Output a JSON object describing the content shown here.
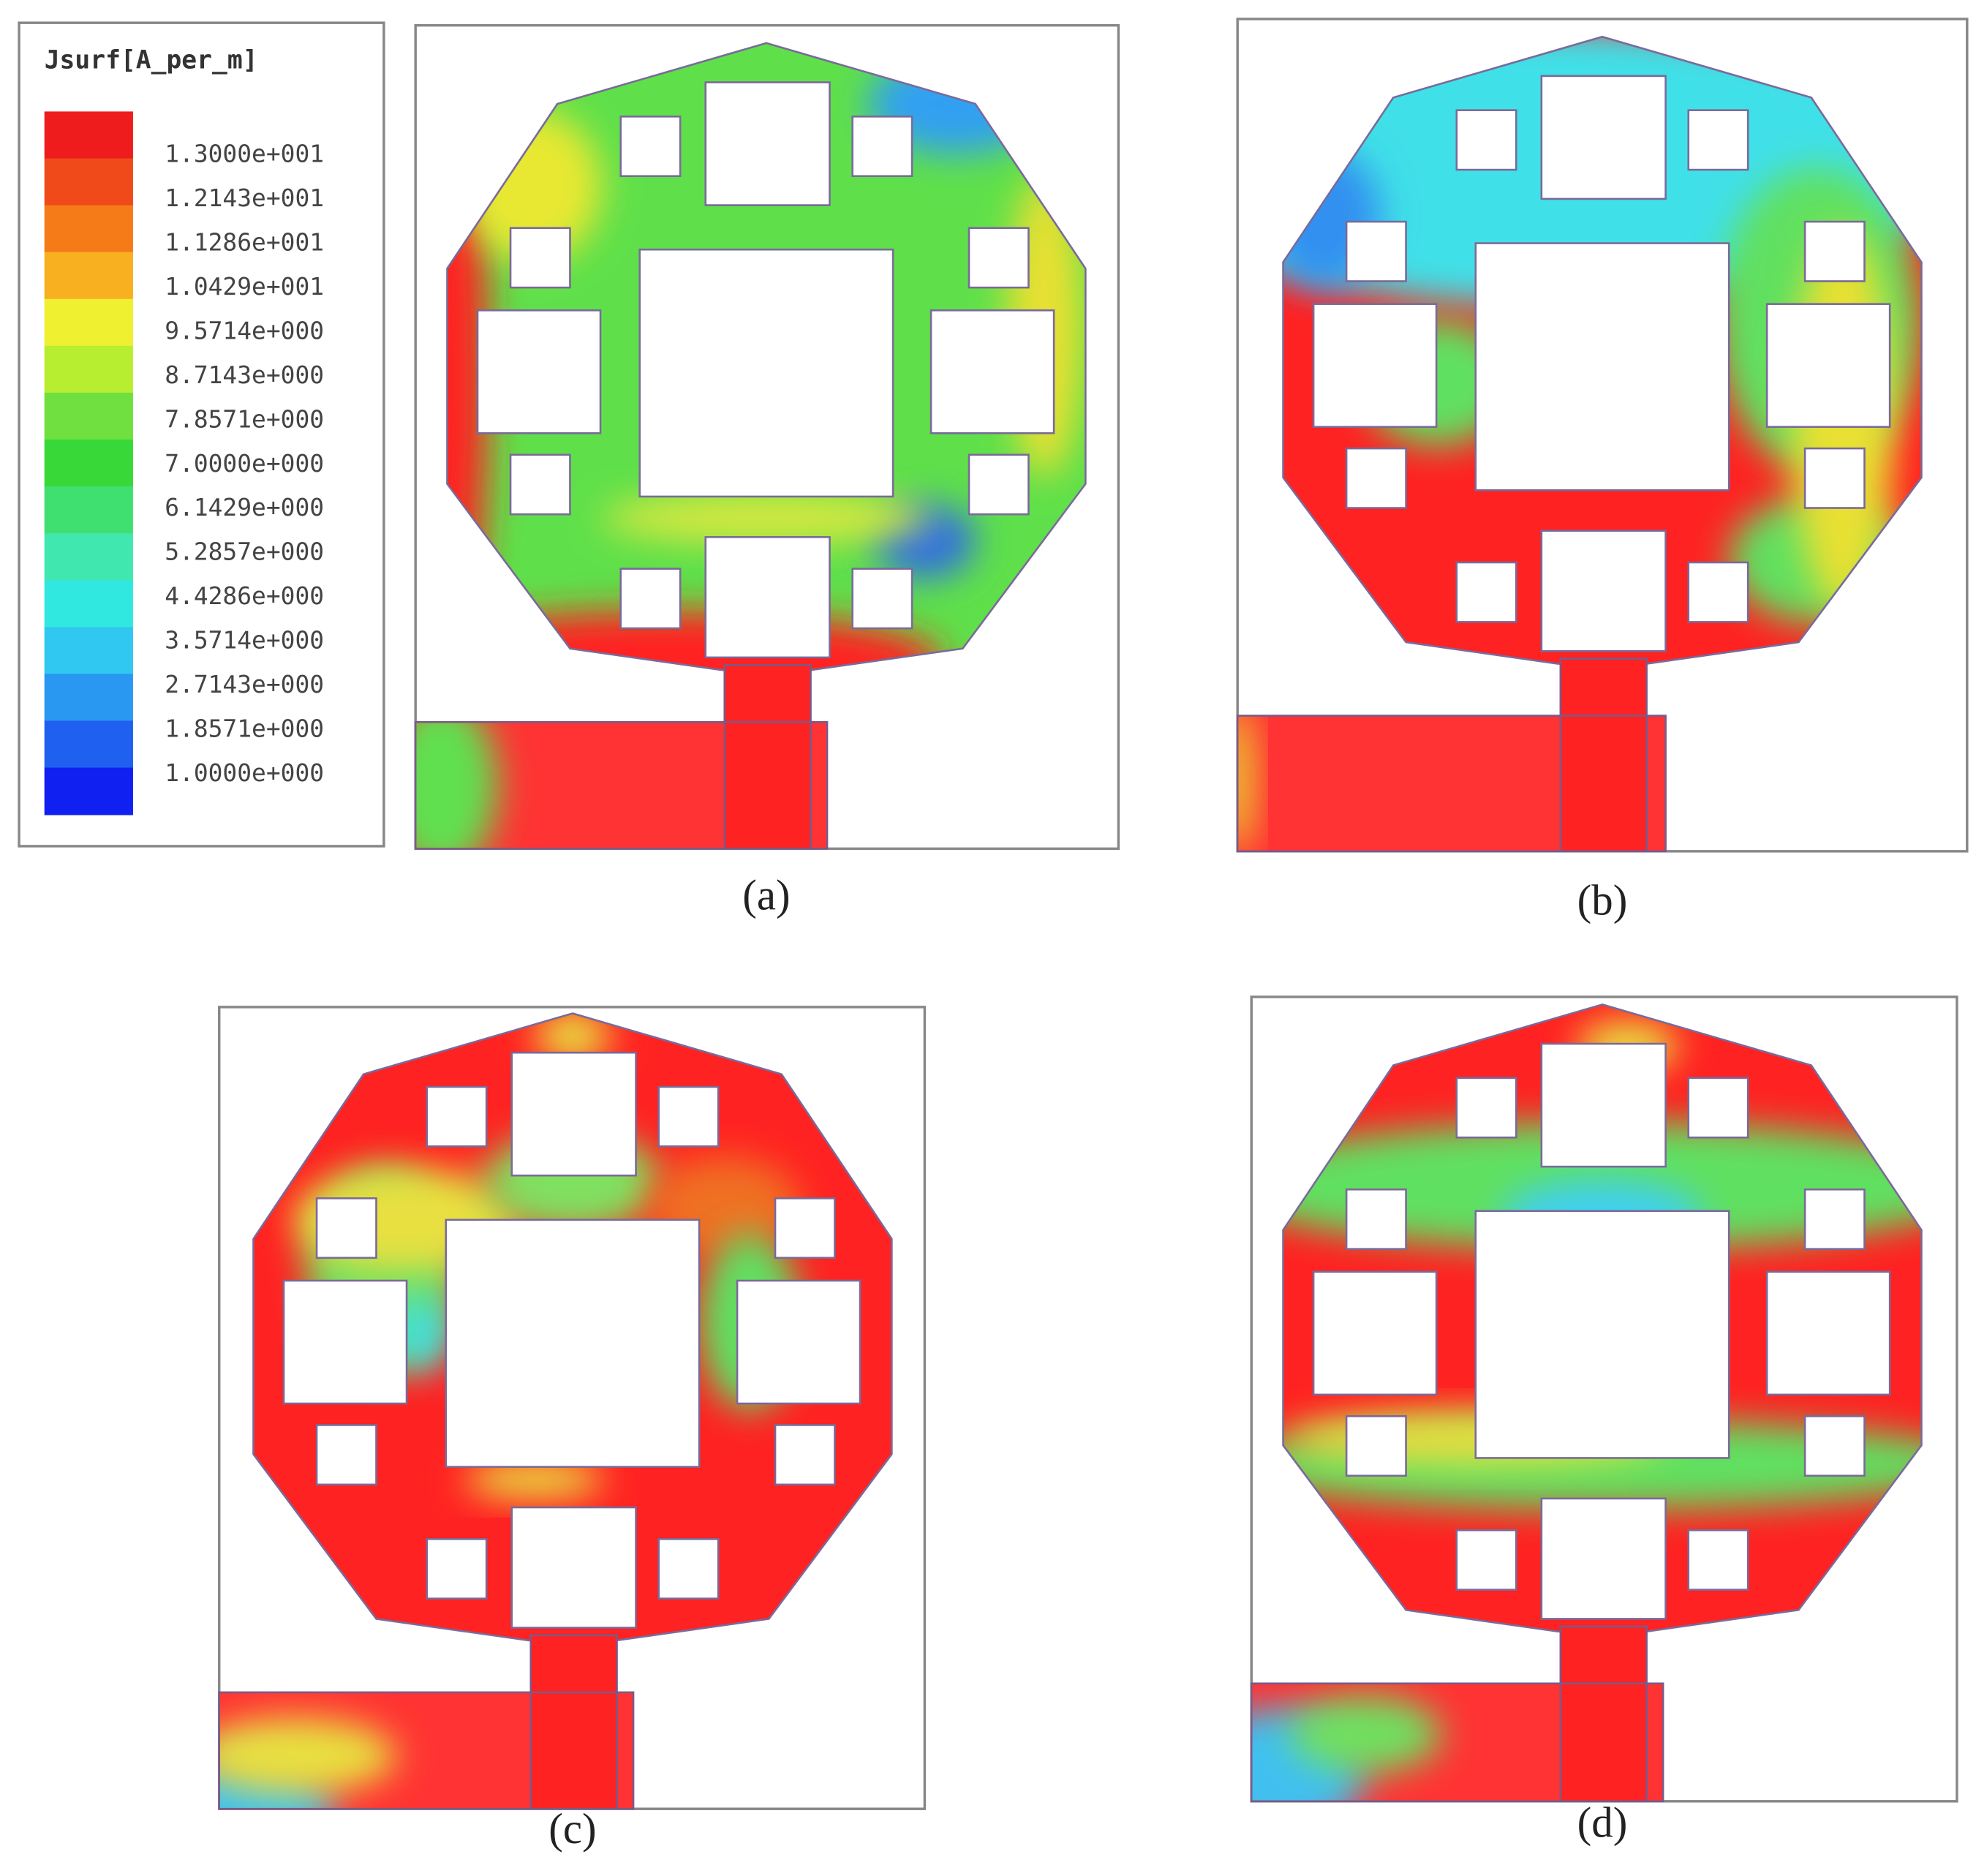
{
  "legend": {
    "title": "Jsurf[A_per_m]",
    "labels": [
      "1.3000e+001",
      "1.2143e+001",
      "1.1286e+001",
      "1.0429e+001",
      "9.5714e+000",
      "8.7143e+000",
      "7.8571e+000",
      "7.0000e+000",
      "6.1429e+000",
      "5.2857e+000",
      "4.4286e+000",
      "3.5714e+000",
      "2.7143e+000",
      "1.8571e+000",
      "1.0000e+000"
    ]
  },
  "panels": [
    {
      "label": "(a)"
    },
    {
      "label": "(b)"
    },
    {
      "label": "(c)"
    },
    {
      "label": "(d)"
    }
  ]
}
